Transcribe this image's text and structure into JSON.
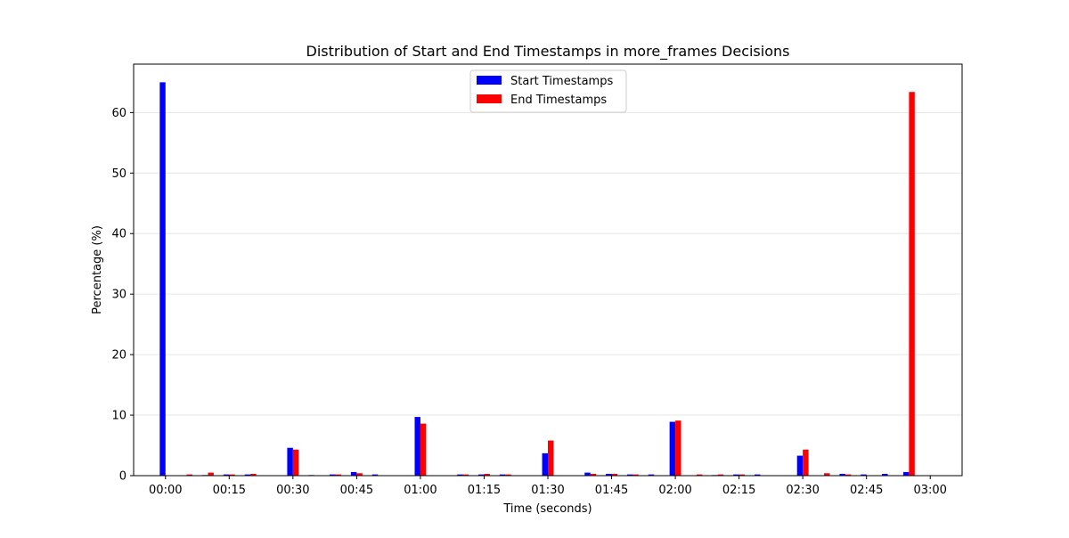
{
  "chart_data": {
    "type": "bar",
    "title": "Distribution of Start and End Timestamps in more_frames Decisions",
    "xlabel": "Time (seconds)",
    "ylabel": "Percentage (%)",
    "ylim": [
      0,
      68
    ],
    "y_ticks": [
      0,
      10,
      20,
      30,
      40,
      50,
      60
    ],
    "x_ticks": [
      "00:00",
      "00:15",
      "00:30",
      "00:45",
      "01:00",
      "01:15",
      "01:30",
      "01:45",
      "02:00",
      "02:15",
      "02:30",
      "02:45",
      "03:00"
    ],
    "x_tick_seconds": [
      0,
      15,
      30,
      45,
      60,
      75,
      90,
      105,
      120,
      135,
      150,
      165,
      180
    ],
    "xlim_seconds": [
      -7.5,
      187.5
    ],
    "bin_width_seconds": 5,
    "x_seconds": [
      0,
      5,
      10,
      15,
      20,
      25,
      30,
      35,
      40,
      45,
      50,
      55,
      60,
      65,
      70,
      75,
      80,
      85,
      90,
      95,
      100,
      105,
      110,
      115,
      120,
      125,
      130,
      135,
      140,
      145,
      150,
      155,
      160,
      165,
      170,
      175
    ],
    "grid": "y",
    "legend_position": "top-center",
    "series": [
      {
        "name": "Start Timestamps",
        "color": "#0000ff",
        "values": [
          65.0,
          0,
          0.1,
          0.2,
          0.2,
          0,
          4.6,
          0.1,
          0.2,
          0.6,
          0.2,
          0,
          9.7,
          0,
          0.2,
          0.2,
          0.2,
          0,
          3.7,
          0,
          0.5,
          0.3,
          0.2,
          0.2,
          8.9,
          0,
          0.1,
          0.2,
          0.2,
          0,
          3.3,
          0,
          0.3,
          0.2,
          0.3,
          0.6
        ]
      },
      {
        "name": "End Timestamps",
        "color": "#ff0000",
        "values": [
          0,
          0.2,
          0.5,
          0.2,
          0.3,
          0,
          4.3,
          0,
          0.2,
          0.4,
          0,
          0,
          8.6,
          0,
          0.2,
          0.3,
          0.2,
          0,
          5.8,
          0,
          0.3,
          0.3,
          0.2,
          0,
          9.1,
          0.2,
          0.2,
          0.2,
          0,
          0,
          4.3,
          0.4,
          0.2,
          0,
          0,
          63.4
        ]
      }
    ]
  }
}
